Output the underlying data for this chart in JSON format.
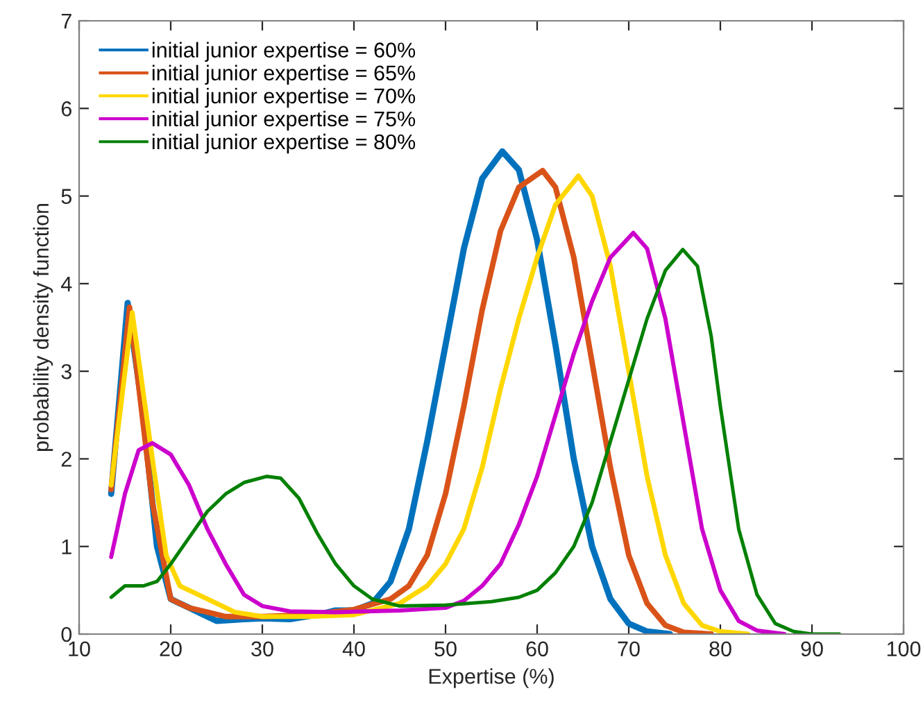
{
  "chart_data": {
    "type": "line",
    "xlabel": "Expertise (%)",
    "ylabel": "probability density function",
    "xlim": [
      10,
      100
    ],
    "ylim": [
      0,
      7
    ],
    "xticks": [
      10,
      20,
      30,
      40,
      50,
      60,
      70,
      80,
      90,
      100
    ],
    "yticks": [
      0,
      1,
      2,
      3,
      4,
      5,
      6,
      7
    ],
    "grid": false,
    "legend": "top left",
    "marker": "none",
    "line_style": "solid",
    "series": [
      {
        "name": "initial junior expertise = 60%",
        "color": "#0072bd",
        "x": [
          13.5,
          15.3,
          17,
          18.5,
          20,
          22,
          24,
          25,
          28,
          30,
          33,
          36,
          38,
          40,
          42,
          44,
          46,
          48,
          50,
          52,
          54,
          56.2,
          58,
          60,
          62,
          64,
          66,
          68,
          70,
          72,
          74.5
        ],
        "values": [
          1.6,
          3.78,
          2.5,
          1.0,
          0.4,
          0.3,
          0.2,
          0.15,
          0.17,
          0.18,
          0.17,
          0.22,
          0.27,
          0.27,
          0.35,
          0.6,
          1.2,
          2.2,
          3.3,
          4.4,
          5.2,
          5.51,
          5.3,
          4.5,
          3.3,
          2.0,
          1.0,
          0.4,
          0.12,
          0.03,
          0.0
        ]
      },
      {
        "name": "initial junior expertise = 65%",
        "color": "#d95319",
        "x": [
          13.5,
          15.5,
          18,
          20,
          22,
          24,
          26,
          30,
          35,
          40,
          44,
          46,
          48,
          50,
          52,
          54,
          56,
          58,
          60.6,
          62,
          64,
          66,
          68,
          70,
          72,
          74,
          76,
          79
        ],
        "values": [
          1.65,
          3.73,
          1.5,
          0.4,
          0.3,
          0.25,
          0.2,
          0.2,
          0.22,
          0.28,
          0.4,
          0.55,
          0.9,
          1.6,
          2.6,
          3.7,
          4.6,
          5.1,
          5.29,
          5.1,
          4.3,
          3.1,
          1.9,
          0.9,
          0.35,
          0.1,
          0.02,
          0.0
        ]
      },
      {
        "name": "initial junior expertise = 70%",
        "color": "#ffd700",
        "x": [
          13.5,
          15.8,
          18,
          19.5,
          21,
          24,
          27,
          30,
          35,
          40,
          45,
          48,
          50,
          52,
          54,
          56,
          58,
          60,
          62,
          64.5,
          66,
          68,
          70,
          72,
          74,
          76,
          78,
          80,
          83
        ],
        "values": [
          1.7,
          3.67,
          2.0,
          0.9,
          0.55,
          0.4,
          0.25,
          0.2,
          0.2,
          0.22,
          0.35,
          0.55,
          0.8,
          1.2,
          1.9,
          2.8,
          3.6,
          4.3,
          4.9,
          5.23,
          5.0,
          4.2,
          3.0,
          1.8,
          0.9,
          0.35,
          0.1,
          0.03,
          0.0
        ]
      },
      {
        "name": "initial junior expertise = 75%",
        "color": "#cc00cc",
        "x": [
          13.5,
          15,
          16.5,
          18,
          20,
          22,
          24,
          26,
          28,
          30,
          33,
          38,
          45,
          50,
          52,
          54,
          56,
          58,
          60,
          62,
          64,
          66,
          68,
          70.5,
          72,
          74,
          76,
          78,
          80,
          82,
          84,
          87
        ],
        "values": [
          0.88,
          1.6,
          2.1,
          2.18,
          2.05,
          1.7,
          1.2,
          0.8,
          0.45,
          0.32,
          0.26,
          0.25,
          0.27,
          0.3,
          0.38,
          0.55,
          0.8,
          1.25,
          1.8,
          2.5,
          3.2,
          3.8,
          4.3,
          4.58,
          4.4,
          3.6,
          2.4,
          1.2,
          0.5,
          0.15,
          0.04,
          0.0
        ]
      },
      {
        "name": "initial junior expertise = 80%",
        "color": "#008000",
        "x": [
          13.5,
          15,
          17,
          18.5,
          20,
          22,
          24,
          26,
          28,
          30.5,
          32,
          34,
          36,
          38,
          40,
          42,
          45,
          50,
          55,
          58,
          60,
          62,
          64,
          66,
          68,
          70,
          72,
          74,
          75.9,
          77.5,
          79,
          80,
          82,
          84,
          86,
          88,
          90,
          93
        ],
        "values": [
          0.42,
          0.55,
          0.55,
          0.6,
          0.8,
          1.1,
          1.4,
          1.6,
          1.73,
          1.8,
          1.78,
          1.55,
          1.15,
          0.8,
          0.55,
          0.4,
          0.32,
          0.33,
          0.37,
          0.42,
          0.5,
          0.7,
          1.0,
          1.5,
          2.2,
          2.9,
          3.6,
          4.15,
          4.39,
          4.2,
          3.4,
          2.6,
          1.2,
          0.45,
          0.12,
          0.03,
          0.0,
          0.0
        ]
      }
    ]
  }
}
